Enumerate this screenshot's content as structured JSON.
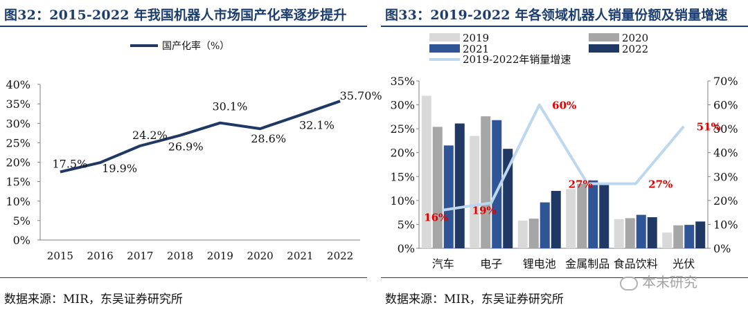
{
  "left_panel": {
    "title": "图32：2015-2022 年我国机器人市场国产化率逐步提升",
    "source": "数据来源：MIR，东吴证券研究所"
  },
  "right_panel": {
    "title": "图33：2019-2022 年各领域机器人销量份额及销量增速",
    "source": "数据来源：MIR，东吴证券研究所"
  },
  "watermark": "本末研究",
  "chart_data": [
    {
      "type": "line",
      "x": [
        "2015",
        "2016",
        "2017",
        "2018",
        "2019",
        "2020",
        "2021",
        "2022"
      ],
      "series": [
        {
          "name": "国产化率（%）",
          "values": [
            17.5,
            19.9,
            24.2,
            26.9,
            30.1,
            28.6,
            32.1,
            35.7
          ],
          "color": "#1f3864"
        }
      ],
      "data_labels": [
        "17.5%",
        "19.9%",
        "24.2%",
        "26.9%",
        "30.1%",
        "28.6%",
        "32.1%",
        "35.70%"
      ],
      "ylim": [
        0,
        40
      ],
      "yticks": [
        "0%",
        "5%",
        "10%",
        "15%",
        "20%",
        "25%",
        "30%",
        "35%",
        "40%"
      ],
      "legend": "top",
      "grid": false
    },
    {
      "type": "bar",
      "categories": [
        "汽车",
        "电子",
        "锂电池",
        "金属制品",
        "食品饮料",
        "光伏"
      ],
      "series": [
        {
          "name": "2019",
          "values": [
            31.9,
            23.5,
            5.8,
            12.4,
            6.1,
            3.3
          ],
          "color": "#d9d9d9"
        },
        {
          "name": "2020",
          "values": [
            25.4,
            27.6,
            6.2,
            13.5,
            6.3,
            4.8
          ],
          "color": "#a6a6a6"
        },
        {
          "name": "2021",
          "values": [
            21.5,
            26.8,
            9.6,
            14.2,
            7.0,
            4.9
          ],
          "color": "#2f5597"
        },
        {
          "name": "2022",
          "values": [
            26.1,
            20.8,
            12.0,
            13.4,
            6.5,
            5.6
          ],
          "color": "#1f3864"
        }
      ],
      "line_series": {
        "name": "2019-2022年销量增速",
        "values": [
          16,
          19,
          60,
          27,
          27,
          51
        ],
        "labels": [
          "16%",
          "19%",
          "60%",
          "27%",
          "27%",
          "51%"
        ],
        "color": "#bdd7ee",
        "label_color": "#e00000"
      },
      "ylim": [
        0,
        35
      ],
      "yticks": [
        "0%",
        "5%",
        "10%",
        "15%",
        "20%",
        "25%",
        "30%",
        "35%"
      ],
      "y2lim": [
        0,
        70
      ],
      "y2ticks": [
        "0%",
        "10%",
        "20%",
        "30%",
        "40%",
        "50%",
        "60%",
        "70%"
      ],
      "legend": "top",
      "grid": false
    }
  ]
}
